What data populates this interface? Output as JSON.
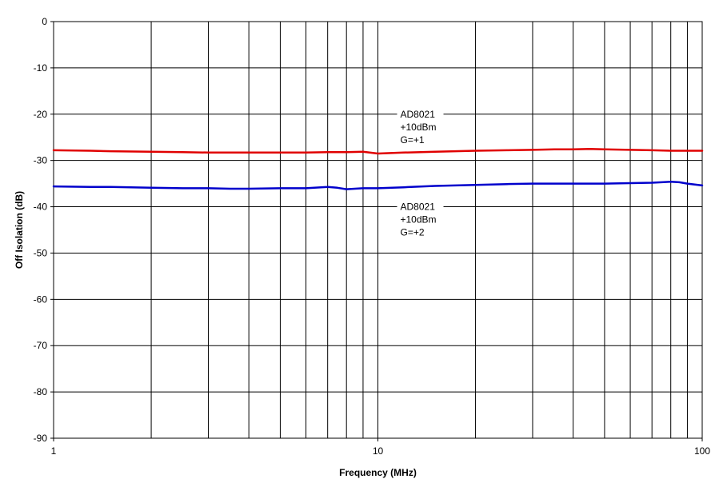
{
  "chart_data": {
    "type": "line",
    "title": "",
    "xlabel": "Frequency (MHz)",
    "ylabel": "Off Isolation (dB)",
    "x_scale": "log",
    "xlim": [
      1,
      100
    ],
    "ylim": [
      -90,
      0
    ],
    "x_tick_labels": [
      "1",
      "10",
      "100"
    ],
    "x_tick_values": [
      1,
      10,
      100
    ],
    "y_tick_values": [
      0,
      -10,
      -20,
      -30,
      -40,
      -50,
      -60,
      -70,
      -80,
      -90
    ],
    "y_tick_labels": [
      "0",
      "-10",
      "-20",
      "-30",
      "-40",
      "-50",
      "-60",
      "-70",
      "-80",
      "-90"
    ],
    "grid": true,
    "legend": "none",
    "series": [
      {
        "color": "#e00000",
        "x": [
          1,
          1.3,
          1.5,
          2,
          2.5,
          3,
          3.5,
          4,
          5,
          6,
          7,
          8,
          9,
          10,
          12,
          15,
          20,
          25,
          30,
          35,
          40,
          45,
          50,
          60,
          70,
          80,
          90,
          100
        ],
        "y": [
          -27.8,
          -27.9,
          -28.0,
          -28.1,
          -28.2,
          -28.3,
          -28.3,
          -28.3,
          -28.3,
          -28.3,
          -28.2,
          -28.2,
          -28.1,
          -28.5,
          -28.3,
          -28.1,
          -27.9,
          -27.8,
          -27.7,
          -27.6,
          -27.6,
          -27.5,
          -27.6,
          -27.7,
          -27.8,
          -27.9,
          -27.9,
          -27.9
        ]
      },
      {
        "color": "#0000cc",
        "x": [
          1,
          1.3,
          1.5,
          2,
          2.5,
          3,
          3.5,
          4,
          5,
          6,
          7,
          7.5,
          8,
          9,
          10,
          12,
          15,
          20,
          25,
          30,
          35,
          40,
          50,
          60,
          70,
          75,
          80,
          85,
          90,
          100
        ],
        "y": [
          -35.6,
          -35.7,
          -35.7,
          -35.9,
          -36.0,
          -36.0,
          -36.1,
          -36.1,
          -36.0,
          -36.0,
          -35.7,
          -35.9,
          -36.2,
          -36.0,
          -36.0,
          -35.8,
          -35.5,
          -35.3,
          -35.1,
          -35.0,
          -35.0,
          -35.0,
          -35.0,
          -34.9,
          -34.8,
          -34.7,
          -34.6,
          -34.7,
          -35.0,
          -35.4
        ]
      }
    ],
    "annotations": [
      {
        "lines": [
          "AD8021",
          "+10dBm",
          "G=+1"
        ],
        "anchor_x": 10,
        "anchor_y": -20
      },
      {
        "lines": [
          "AD8021",
          "+10dBm",
          "G=+2"
        ],
        "anchor_x": 10,
        "anchor_y": -40
      }
    ]
  }
}
